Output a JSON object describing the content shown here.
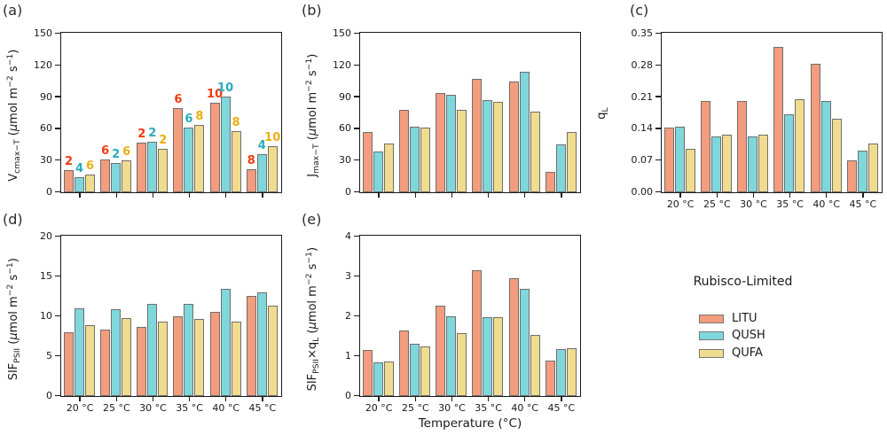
{
  "figure": {
    "xlabel": "Temperature (°C)"
  },
  "legend": {
    "title": "Rubisco-Limited",
    "items": [
      {
        "label": "LITU",
        "color": "#F49C7E"
      },
      {
        "label": "QUSH",
        "color": "#7FD7DB"
      },
      {
        "label": "QUFA",
        "color": "#F0DC8E"
      }
    ]
  },
  "colors": {
    "bar_edge": "#6e6e6e",
    "axis": "#1a1a1a",
    "annotation_LITU": "#F13A10",
    "annotation_QUSH": "#28ACB9",
    "annotation_QUFA": "#E9B012"
  },
  "chart_data": [
    {
      "panel_label": "(a)",
      "type": "bar",
      "ylabel_parts": [
        {
          "t": "V",
          "s": "n"
        },
        {
          "t": "cmax−T",
          "s": "sub"
        },
        {
          "t": " (",
          "s": "n"
        },
        {
          "t": "μ",
          "s": "i"
        },
        {
          "t": "mol m",
          "s": "n"
        },
        {
          "t": "−2",
          "s": "sup"
        },
        {
          "t": " s",
          "s": "n"
        },
        {
          "t": "−1",
          "s": "sup"
        },
        {
          "t": ")",
          "s": "n"
        }
      ],
      "ylim": [
        0,
        150
      ],
      "ytick_values": [
        0,
        30,
        60,
        90,
        120,
        150
      ],
      "ytick_labels": [
        "0",
        "30",
        "60",
        "90",
        "120",
        "150"
      ],
      "categories": [
        "20 °C",
        "25 °C",
        "30 °C",
        "35 °C",
        "40 °C",
        "45 °C"
      ],
      "show_x_tick_labels": false,
      "series": [
        {
          "name": "LITU",
          "color": "#F49C7E",
          "values": [
            21,
            31,
            47,
            80,
            85,
            22
          ],
          "counts": [
            2,
            6,
            2,
            6,
            10,
            8
          ],
          "count_color": "#F13A10"
        },
        {
          "name": "QUSH",
          "color": "#7FD7DB",
          "values": [
            14,
            28,
            48,
            61,
            91,
            36
          ],
          "counts": [
            4,
            2,
            2,
            6,
            10,
            4
          ],
          "count_color": "#28ACB9"
        },
        {
          "name": "QUFA",
          "color": "#F0DC8E",
          "values": [
            17,
            30,
            41,
            64,
            58,
            44
          ],
          "counts": [
            6,
            6,
            2,
            8,
            8,
            10
          ],
          "count_color": "#E9B012"
        }
      ]
    },
    {
      "panel_label": "(b)",
      "type": "bar",
      "ylabel_parts": [
        {
          "t": "J",
          "s": "n"
        },
        {
          "t": "max−T",
          "s": "sub"
        },
        {
          "t": " (",
          "s": "n"
        },
        {
          "t": "μ",
          "s": "i"
        },
        {
          "t": "mol m",
          "s": "n"
        },
        {
          "t": "−2",
          "s": "sup"
        },
        {
          "t": " s",
          "s": "n"
        },
        {
          "t": "−1",
          "s": "sup"
        },
        {
          "t": ")",
          "s": "n"
        }
      ],
      "ylim": [
        0,
        150
      ],
      "ytick_values": [
        0,
        30,
        60,
        90,
        120,
        150
      ],
      "ytick_labels": [
        "0",
        "30",
        "60",
        "90",
        "120",
        "150"
      ],
      "categories": [
        "20 °C",
        "25 °C",
        "30 °C",
        "35 °C",
        "40 °C",
        "45 °C"
      ],
      "show_x_tick_labels": false,
      "series": [
        {
          "name": "LITU",
          "color": "#F49C7E",
          "values": [
            57,
            78,
            94,
            107,
            105,
            19
          ]
        },
        {
          "name": "QUSH",
          "color": "#7FD7DB",
          "values": [
            39,
            62,
            92,
            87,
            114,
            45
          ]
        },
        {
          "name": "QUFA",
          "color": "#F0DC8E",
          "values": [
            46,
            61,
            78,
            86,
            76,
            57
          ]
        }
      ]
    },
    {
      "panel_label": "(c)",
      "type": "bar",
      "ylabel_parts": [
        {
          "t": "q",
          "s": "n"
        },
        {
          "t": "L",
          "s": "sub"
        }
      ],
      "ylim": [
        0,
        0.35
      ],
      "ytick_values": [
        0,
        0.07,
        0.14,
        0.21,
        0.28,
        0.35
      ],
      "ytick_labels": [
        "0.00",
        "0.07",
        "0.14",
        "0.21",
        "0.28",
        "0.35"
      ],
      "categories": [
        "20 °C",
        "25 °C",
        "30 °C",
        "35 °C",
        "40 °C",
        "45 °C"
      ],
      "show_x_tick_labels": true,
      "series": [
        {
          "name": "LITU",
          "color": "#F49C7E",
          "values": [
            0.143,
            0.202,
            0.202,
            0.322,
            0.284,
            0.071
          ]
        },
        {
          "name": "QUSH",
          "color": "#7FD7DB",
          "values": [
            0.144,
            0.123,
            0.123,
            0.172,
            0.202,
            0.092
          ]
        },
        {
          "name": "QUFA",
          "color": "#F0DC8E",
          "values": [
            0.096,
            0.128,
            0.128,
            0.206,
            0.163,
            0.108
          ]
        }
      ]
    },
    {
      "panel_label": "(d)",
      "type": "bar",
      "ylabel_parts": [
        {
          "t": "SIF",
          "s": "n"
        },
        {
          "t": "PSII",
          "s": "sub"
        },
        {
          "t": " (",
          "s": "n"
        },
        {
          "t": "μ",
          "s": "i"
        },
        {
          "t": "mol m",
          "s": "n"
        },
        {
          "t": "−2",
          "s": "sup"
        },
        {
          "t": " s",
          "s": "n"
        },
        {
          "t": "−1",
          "s": "sup"
        },
        {
          "t": ")",
          "s": "n"
        }
      ],
      "ylim": [
        0,
        20
      ],
      "ytick_values": [
        0,
        5,
        10,
        15,
        20
      ],
      "ytick_labels": [
        "0",
        "5",
        "10",
        "15",
        "20"
      ],
      "categories": [
        "20 °C",
        "25 °C",
        "30 °C",
        "35 °C",
        "40 °C",
        "45 °C"
      ],
      "show_x_tick_labels": true,
      "series": [
        {
          "name": "LITU",
          "color": "#F49C7E",
          "values": [
            8.0,
            8.3,
            8.7,
            10.0,
            10.6,
            12.6
          ]
        },
        {
          "name": "QUSH",
          "color": "#7FD7DB",
          "values": [
            11.0,
            10.9,
            11.6,
            11.6,
            13.5,
            13.0
          ]
        },
        {
          "name": "QUFA",
          "color": "#F0DC8E",
          "values": [
            8.9,
            9.8,
            9.4,
            9.7,
            9.3,
            11.4
          ]
        }
      ]
    },
    {
      "panel_label": "(e)",
      "type": "bar",
      "ylabel_parts": [
        {
          "t": "SIF",
          "s": "n"
        },
        {
          "t": "PSII",
          "s": "sub"
        },
        {
          "t": "×q",
          "s": "n"
        },
        {
          "t": "L",
          "s": "sub"
        },
        {
          "t": " (",
          "s": "n"
        },
        {
          "t": "μ",
          "s": "i"
        },
        {
          "t": "mol m",
          "s": "n"
        },
        {
          "t": "−2",
          "s": "sup"
        },
        {
          "t": " s",
          "s": "n"
        },
        {
          "t": "−1",
          "s": "sup"
        },
        {
          "t": ")",
          "s": "n"
        }
      ],
      "ylim": [
        0,
        4
      ],
      "ytick_values": [
        0,
        1,
        2,
        3,
        4
      ],
      "ytick_labels": [
        "0",
        "1",
        "2",
        "3",
        "4"
      ],
      "categories": [
        "20 °C",
        "25 °C",
        "30 °C",
        "35 °C",
        "40 °C",
        "45 °C"
      ],
      "show_x_tick_labels": true,
      "series": [
        {
          "name": "LITU",
          "color": "#F49C7E",
          "values": [
            1.15,
            1.65,
            2.26,
            3.17,
            2.97,
            0.89
          ]
        },
        {
          "name": "QUSH",
          "color": "#7FD7DB",
          "values": [
            0.85,
            1.32,
            2.0,
            1.98,
            2.69,
            1.19
          ]
        },
        {
          "name": "QUFA",
          "color": "#F0DC8E",
          "values": [
            0.86,
            1.25,
            1.58,
            1.98,
            1.53,
            1.21
          ]
        }
      ]
    }
  ]
}
